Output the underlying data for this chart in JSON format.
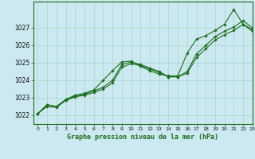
{
  "title": "Graphe pression niveau de la mer (hPa)",
  "background_color": "#cce8f0",
  "grid_color": "#b0d8cc",
  "line_color": "#1a6e1a",
  "marker_color": "#1a6e1a",
  "xlim": [
    -0.5,
    23
  ],
  "ylim": [
    1021.5,
    1028.5
  ],
  "xticks": [
    0,
    1,
    2,
    3,
    4,
    5,
    6,
    7,
    8,
    9,
    10,
    11,
    12,
    13,
    14,
    15,
    16,
    17,
    18,
    19,
    20,
    21,
    22,
    23
  ],
  "yticks": [
    1022,
    1023,
    1024,
    1025,
    1026,
    1027
  ],
  "series": [
    [
      1022.1,
      1022.6,
      1022.5,
      1022.9,
      1023.1,
      1023.2,
      1023.4,
      1023.6,
      1024.0,
      1024.9,
      1025.05,
      1024.9,
      1024.7,
      1024.5,
      1024.2,
      1024.2,
      1024.5,
      1025.5,
      1026.0,
      1026.5,
      1026.8,
      1027.05,
      1027.4,
      1027.0
    ],
    [
      1022.1,
      1022.5,
      1022.45,
      1022.85,
      1023.05,
      1023.15,
      1023.3,
      1023.5,
      1023.85,
      1024.75,
      1024.95,
      1024.85,
      1024.65,
      1024.45,
      1024.2,
      1024.2,
      1024.4,
      1025.3,
      1025.8,
      1026.3,
      1026.6,
      1026.85,
      1027.2,
      1026.8
    ],
    [
      1022.1,
      1022.6,
      1022.5,
      1022.9,
      1023.15,
      1023.25,
      1023.45,
      1024.0,
      1024.55,
      1025.05,
      1025.1,
      1024.8,
      1024.55,
      1024.35,
      1024.25,
      1024.25,
      1025.55,
      1026.35,
      1026.55,
      1026.85,
      1027.2,
      1028.05,
      1027.2,
      1026.9
    ]
  ],
  "xlabel_fontsize": 6.0,
  "ytick_fontsize": 5.5,
  "xtick_fontsize": 4.5
}
